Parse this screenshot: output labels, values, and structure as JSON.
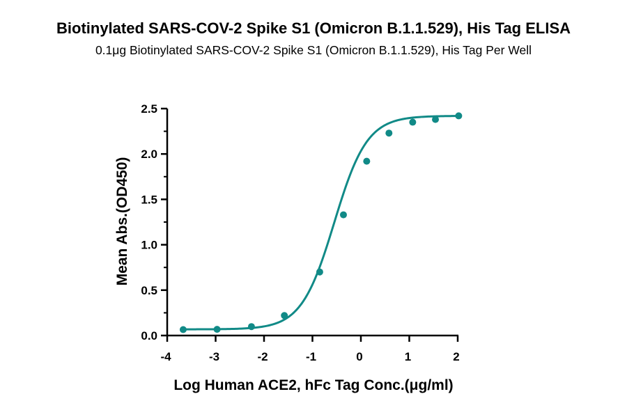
{
  "chart_data": {
    "type": "scatter",
    "title": "Biotinylated SARS-COV-2 Spike S1 (Omicron B.1.1.529), His Tag ELISA",
    "subtitle": "0.1μg Biotinylated SARS-COV-2 Spike S1 (Omicron B.1.1.529), His Tag Per Well",
    "xlabel": "Log Human ACE2, hFc Tag Conc.(μg/ml)",
    "ylabel": "Mean Abs.(OD450)",
    "xlim": [
      -4,
      2
    ],
    "ylim": [
      0,
      2.5
    ],
    "xticks": [
      "-4",
      "-3",
      "-2",
      "-1",
      "0",
      "1",
      "2"
    ],
    "yticks": [
      "0.0",
      "0.5",
      "1.0",
      "1.5",
      "2.0",
      "2.5"
    ],
    "series": [
      {
        "x": [
          -3.67,
          -2.97,
          -2.26,
          -1.58,
          -0.85,
          -0.36,
          0.12,
          0.58,
          1.07,
          1.54,
          2.02
        ],
        "y": [
          0.065,
          0.068,
          0.098,
          0.22,
          0.7,
          1.33,
          1.92,
          2.23,
          2.35,
          2.38,
          2.42
        ],
        "fit": "four-parameter-logistic",
        "color": "#118a87"
      }
    ],
    "grid": false,
    "legend": "none"
  }
}
